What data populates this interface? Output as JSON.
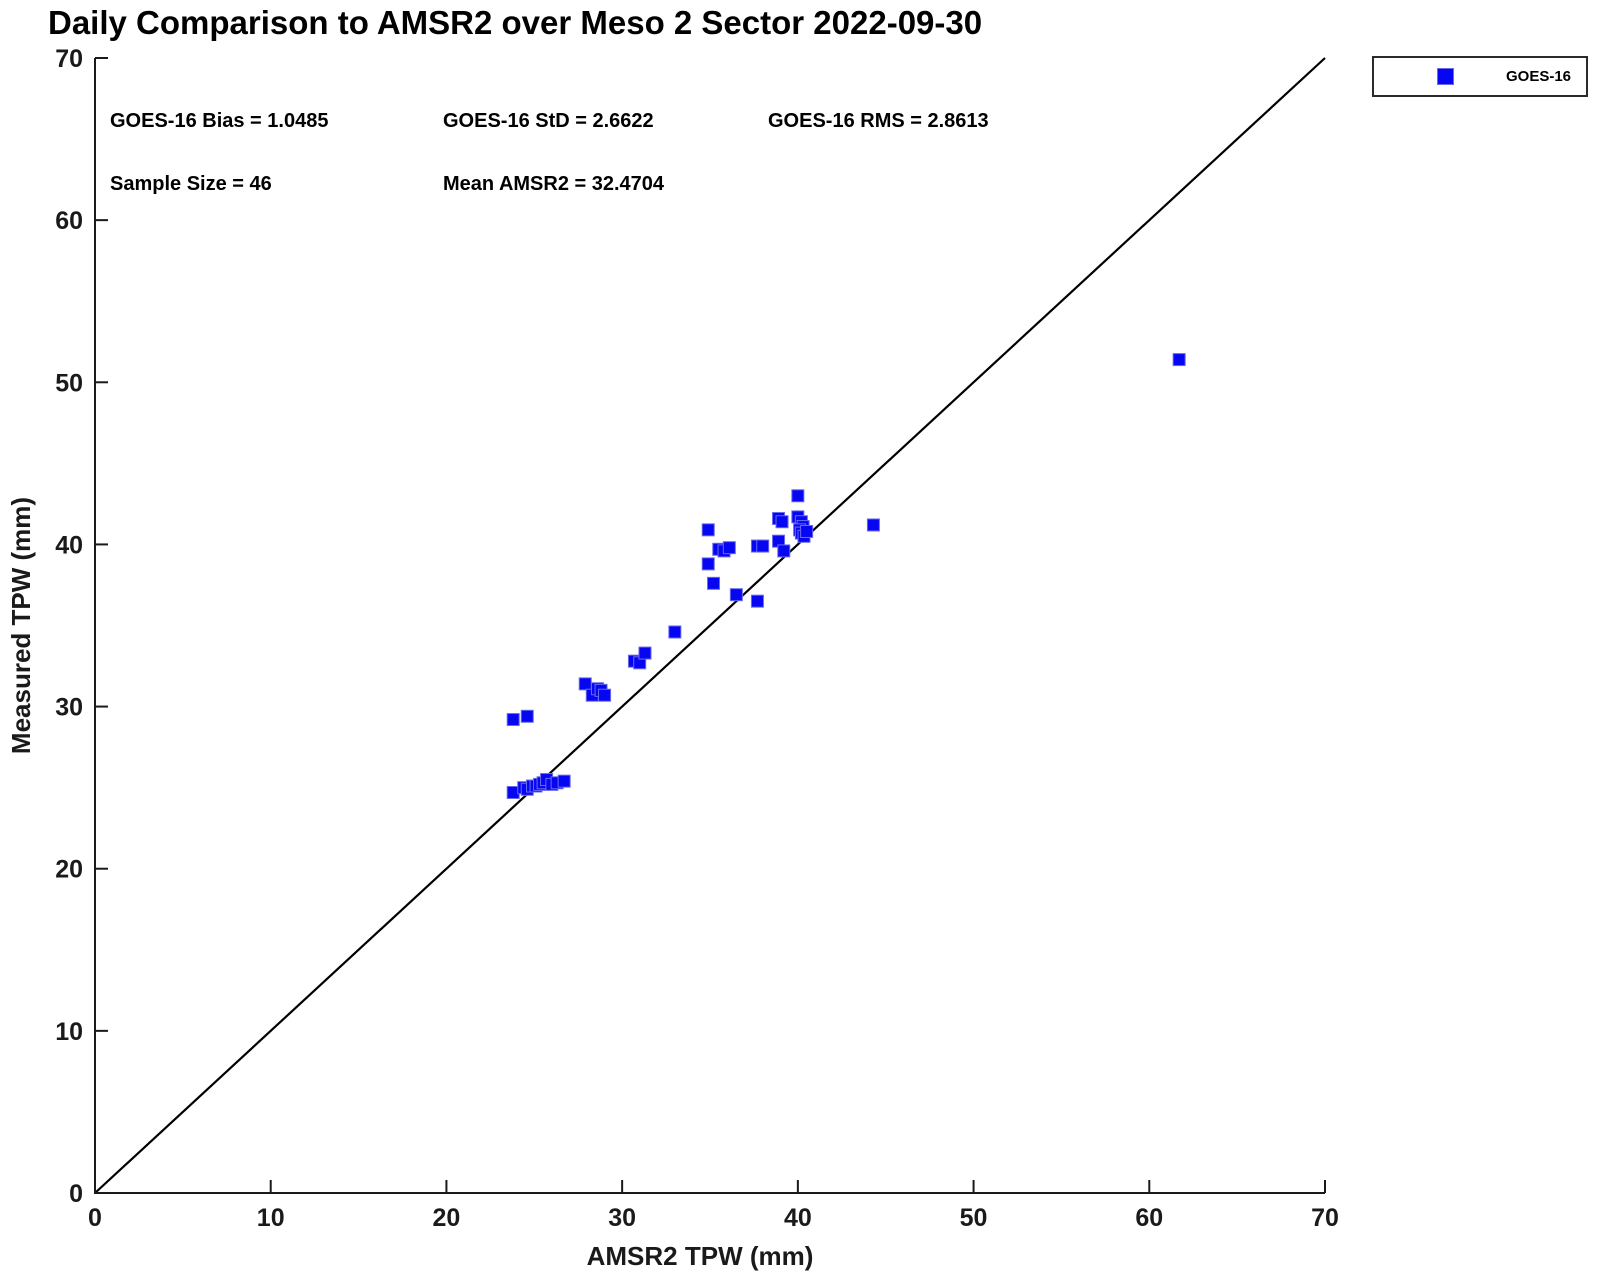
{
  "title": "Daily Comparison to AMSR2 over Meso 2 Sector 2022-09-30",
  "annotations": {
    "bias": "GOES-16 Bias = 1.0485",
    "std": "GOES-16 StD = 2.6622",
    "rms": "GOES-16 RMS = 2.8613",
    "sample_size": "Sample Size = 46",
    "mean_amsr2": "Mean AMSR2 = 32.4704"
  },
  "legend": {
    "entries": [
      {
        "label": "GOES-16",
        "marker": "square",
        "color": "#0606f2"
      }
    ]
  },
  "colors": {
    "marker_fill": "#0606f2",
    "marker_edge": "#6a6af0",
    "axis": "#1a1a1a",
    "reference_line": "#000000",
    "background": "#ffffff"
  },
  "chart_data": {
    "type": "scatter",
    "title": "Daily Comparison to AMSR2 over Meso 2 Sector 2022-09-30",
    "xlabel": "AMSR2 TPW (mm)",
    "ylabel": "Measured TPW (mm)",
    "xlim": [
      0,
      70
    ],
    "ylim": [
      0,
      70
    ],
    "xticks": [
      0,
      10,
      20,
      30,
      40,
      50,
      60,
      70
    ],
    "yticks": [
      0,
      10,
      20,
      30,
      40,
      50,
      60,
      70
    ],
    "grid": false,
    "legend_position": "top-right-outside",
    "reference_line": {
      "from": [
        0,
        0
      ],
      "to": [
        70,
        70
      ]
    },
    "series": [
      {
        "name": "GOES-16",
        "marker": "square",
        "color": "#0606f2",
        "points": [
          [
            23.8,
            24.7
          ],
          [
            24.4,
            25.0
          ],
          [
            24.6,
            24.9
          ],
          [
            24.9,
            25.1
          ],
          [
            25.1,
            25.1
          ],
          [
            25.3,
            25.2
          ],
          [
            25.5,
            25.3
          ],
          [
            25.7,
            25.5
          ],
          [
            26.0,
            25.2
          ],
          [
            26.3,
            25.3
          ],
          [
            26.7,
            25.4
          ],
          [
            23.8,
            29.2
          ],
          [
            24.6,
            29.4
          ],
          [
            27.9,
            31.4
          ],
          [
            28.3,
            30.7
          ],
          [
            28.6,
            31.1
          ],
          [
            28.8,
            31.0
          ],
          [
            29.0,
            30.7
          ],
          [
            30.7,
            32.8
          ],
          [
            31.0,
            32.7
          ],
          [
            31.3,
            33.3
          ],
          [
            33.0,
            34.6
          ],
          [
            34.9,
            40.9
          ],
          [
            34.9,
            38.8
          ],
          [
            35.2,
            37.6
          ],
          [
            35.5,
            39.7
          ],
          [
            35.8,
            39.6
          ],
          [
            36.1,
            39.8
          ],
          [
            36.5,
            36.9
          ],
          [
            37.7,
            36.5
          ],
          [
            37.7,
            39.9
          ],
          [
            38.0,
            39.9
          ],
          [
            38.9,
            40.2
          ],
          [
            39.2,
            39.6
          ],
          [
            38.9,
            41.6
          ],
          [
            39.1,
            41.4
          ],
          [
            40.0,
            43.0
          ],
          [
            40.0,
            41.7
          ],
          [
            40.2,
            41.4
          ],
          [
            40.3,
            41.1
          ],
          [
            40.1,
            40.9
          ],
          [
            40.2,
            40.7
          ],
          [
            40.35,
            40.5
          ],
          [
            40.5,
            40.8
          ],
          [
            44.3,
            41.2
          ],
          [
            61.7,
            51.4
          ]
        ]
      }
    ]
  }
}
